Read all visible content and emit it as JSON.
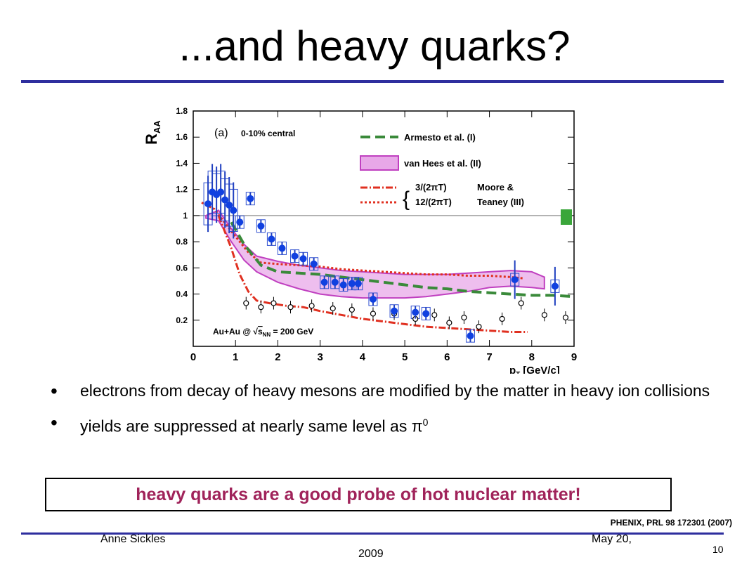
{
  "slide": {
    "title": "...and heavy quarks?",
    "bullets": [
      "electrons from decay of heavy mesons are modified by the matter in heavy ion collisions",
      "yields are suppressed at nearly same level as π"
    ],
    "bullet2_sup": "0",
    "callout": "heavy quarks are a good probe of hot nuclear matter!",
    "reference": "PHENIX, PRL 98 172301 (2007)",
    "footer_author": "Anne Sickles",
    "footer_date_line1": "May 20,",
    "footer_date_line2": "2009",
    "page_number": "10",
    "colors": {
      "rule": "#2e2e9e",
      "callout_text": "#a0235a"
    }
  },
  "chart_data": {
    "type": "scatter",
    "panel_label": "(a)",
    "centrality": "0-10% central",
    "ylabel": "R",
    "ylabel_sub": "AA",
    "xlabel": "p",
    "xlabel_sub": "T",
    "xlabel_unit": "[GeV/c]",
    "system_label_prefix": "Au+Au @ ",
    "system_label_sqrt": "s",
    "system_label_sub": "NN",
    "system_label_suffix": " = 200 GeV",
    "xlim": [
      0,
      9
    ],
    "ylim": [
      0.0,
      1.8
    ],
    "xticks": [
      "0",
      "1",
      "2",
      "3",
      "4",
      "5",
      "6",
      "7",
      "8",
      "9"
    ],
    "yticks": [
      "0.2",
      "0.4",
      "0.6",
      "0.8",
      "1",
      "1.2",
      "1.4",
      "1.6",
      "1.8"
    ],
    "reference_line_y": 1,
    "legend": {
      "armesto": "Armesto et al. (I)",
      "vanhees": "van Hees et al. (II)",
      "moore_a": "3/(2πT)",
      "moore_b": "12/(2πT)",
      "moore_name1": "Moore &",
      "moore_name2": "Teaney (III)"
    },
    "series": [
      {
        "name": "electrons",
        "marker": "filled-circle",
        "x": [
          0.35,
          0.45,
          0.55,
          0.65,
          0.75,
          0.85,
          0.95,
          1.1,
          1.35,
          1.6,
          1.85,
          2.1,
          2.4,
          2.6,
          2.85,
          3.1,
          3.35,
          3.55,
          3.75,
          3.9,
          4.25,
          4.75,
          5.25,
          5.5,
          6.55,
          7.6,
          8.55
        ],
        "y": [
          1.09,
          1.18,
          1.16,
          1.18,
          1.12,
          1.08,
          1.04,
          0.95,
          1.13,
          0.92,
          0.82,
          0.75,
          0.69,
          0.67,
          0.63,
          0.49,
          0.49,
          0.47,
          0.48,
          0.48,
          0.36,
          0.27,
          0.26,
          0.25,
          0.08,
          0.51,
          0.46
        ]
      },
      {
        "name": "pi0",
        "marker": "open-circle",
        "x": [
          1.25,
          1.6,
          1.9,
          2.3,
          2.8,
          3.3,
          3.75,
          4.25,
          4.75,
          5.25,
          5.7,
          6.05,
          6.4,
          6.75,
          7.3,
          7.75,
          8.3,
          8.8
        ],
        "y": [
          0.33,
          0.3,
          0.33,
          0.3,
          0.31,
          0.29,
          0.28,
          0.25,
          0.25,
          0.21,
          0.24,
          0.18,
          0.22,
          0.15,
          0.21,
          0.33,
          0.24,
          0.22
        ]
      },
      {
        "name": "Armesto et al. (I)",
        "x": [
          0.9,
          1.2,
          1.6,
          2.0,
          2.5,
          3.0,
          3.5,
          4.0,
          4.5,
          5.0,
          5.5,
          6.0,
          6.5,
          7.0,
          7.5,
          8.0,
          8.5,
          9.0
        ],
        "y": [
          0.95,
          0.78,
          0.62,
          0.57,
          0.56,
          0.55,
          0.53,
          0.51,
          0.49,
          0.47,
          0.45,
          0.44,
          0.42,
          0.41,
          0.4,
          0.39,
          0.39,
          0.38
        ]
      },
      {
        "name": "3/(2πT)",
        "x": [
          0.6,
          0.9,
          1.1,
          1.3,
          1.5,
          1.8,
          2.2,
          2.6,
          3.0,
          3.5,
          4.0,
          4.5,
          5.0,
          5.5,
          6.0,
          6.5,
          7.0,
          7.5,
          7.9
        ],
        "y": [
          1.0,
          0.75,
          0.55,
          0.42,
          0.35,
          0.33,
          0.31,
          0.3,
          0.27,
          0.24,
          0.21,
          0.19,
          0.17,
          0.15,
          0.14,
          0.13,
          0.12,
          0.11,
          0.11
        ]
      },
      {
        "name": "12/(2πT)",
        "x": [
          0.2,
          0.5,
          0.9,
          1.3,
          1.6,
          2.0,
          2.5,
          3.0,
          3.5,
          4.0,
          4.5,
          5.0,
          5.5,
          6.0,
          6.5,
          7.0,
          7.5,
          7.8
        ],
        "y": [
          1.1,
          1.05,
          0.88,
          0.72,
          0.64,
          0.63,
          0.62,
          0.61,
          0.59,
          0.58,
          0.57,
          0.56,
          0.55,
          0.55,
          0.54,
          0.54,
          0.53,
          0.52
        ]
      },
      {
        "name": "van Hees et al. (II)",
        "x": [
          0.3,
          0.6,
          0.9,
          1.2,
          1.5,
          2.0,
          2.5,
          3.0,
          3.5,
          4.0,
          4.5,
          5.0,
          5.5,
          6.0,
          6.5,
          7.0,
          7.5,
          8.0,
          8.3
        ],
        "upper": [
          1.0,
          1.04,
          0.9,
          0.78,
          0.69,
          0.65,
          0.62,
          0.6,
          0.58,
          0.57,
          0.56,
          0.55,
          0.55,
          0.55,
          0.56,
          0.57,
          0.58,
          0.57,
          0.53
        ],
        "lower": [
          0.98,
          0.96,
          0.8,
          0.66,
          0.57,
          0.49,
          0.44,
          0.4,
          0.38,
          0.37,
          0.37,
          0.37,
          0.38,
          0.4,
          0.42,
          0.45,
          0.46,
          0.45,
          0.44
        ]
      }
    ]
  }
}
